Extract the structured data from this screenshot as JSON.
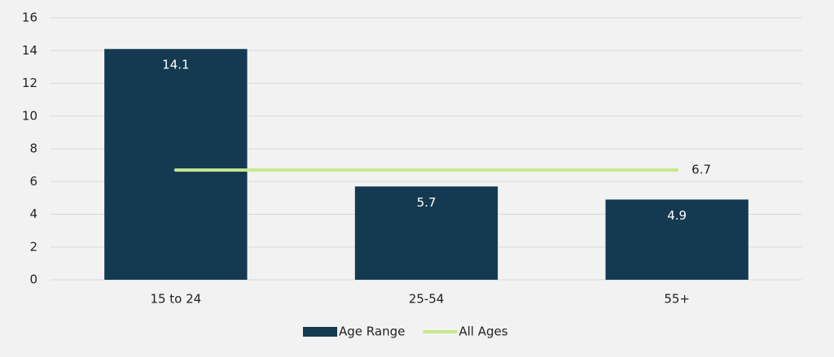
{
  "chart_data": {
    "type": "bar",
    "categories": [
      "15 to 24",
      "25-54",
      "55+"
    ],
    "series": [
      {
        "name": "Age Range",
        "type": "bar",
        "color": "#133a50",
        "values": [
          14.1,
          5.7,
          4.9
        ]
      },
      {
        "name": "All Ages",
        "type": "line",
        "color": "#c6e88f",
        "values": [
          6.7,
          6.7,
          6.7
        ]
      }
    ],
    "ylim": [
      0,
      16
    ],
    "yticks": [
      0,
      2,
      4,
      6,
      8,
      10,
      12,
      14,
      16
    ],
    "grid": true,
    "legend": "bottom"
  }
}
